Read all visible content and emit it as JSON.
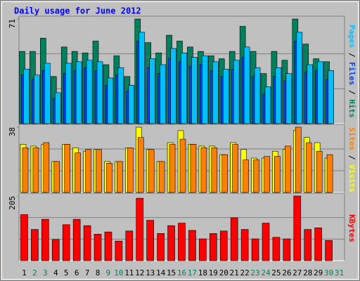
{
  "title": "Daily usage for June 2012",
  "legend_separator": " / ",
  "categories": [
    "1",
    "2",
    "3",
    "4",
    "5",
    "6",
    "7",
    "8",
    "9",
    "10",
    "11",
    "12",
    "13",
    "14",
    "15",
    "16",
    "17",
    "18",
    "19",
    "20",
    "21",
    "22",
    "23",
    "24",
    "25",
    "26",
    "27",
    "28",
    "29",
    "30",
    "31"
  ],
  "category_colors": [
    "#000000",
    "#00805c",
    "#00805c",
    "#000000",
    "#000000",
    "#000000",
    "#000000",
    "#000000",
    "#00805c",
    "#00805c",
    "#000000",
    "#000000",
    "#000000",
    "#000000",
    "#000000",
    "#00805c",
    "#00805c",
    "#000000",
    "#000000",
    "#000000",
    "#000000",
    "#000000",
    "#00805c",
    "#00805c",
    "#000000",
    "#000000",
    "#000000",
    "#000000",
    "#000000",
    "#00805c",
    "#00805c"
  ],
  "chart_data": [
    {
      "type": "bar",
      "ylim": [
        0,
        71
      ],
      "yticks": [
        71
      ],
      "grid_divisions": 3,
      "series": [
        {
          "name": "Hits",
          "color": "#00805c",
          "values": [
            49,
            49,
            58,
            32,
            52,
            49,
            48,
            56,
            40,
            46,
            32,
            71,
            55,
            48,
            60,
            56,
            52,
            49,
            46,
            44,
            49,
            66,
            49,
            34,
            49,
            43,
            71,
            54,
            44,
            42,
            null
          ]
        },
        {
          "name": "Files",
          "color": "#0040ff",
          "values": [
            33,
            30,
            36,
            17,
            34,
            36,
            38,
            36,
            26,
            33,
            22,
            56,
            38,
            34,
            44,
            42,
            39,
            40,
            36,
            32,
            37,
            45,
            32,
            20,
            32,
            29,
            56,
            35,
            36,
            30,
            null
          ]
        },
        {
          "name": "Pages",
          "color": "#00c0ff",
          "values": [
            37,
            33,
            41,
            21,
            41,
            42,
            43,
            42,
            31,
            38,
            26,
            62,
            44,
            40,
            51,
            48,
            45,
            46,
            42,
            37,
            43,
            52,
            38,
            25,
            38,
            34,
            62,
            40,
            42,
            36,
            null
          ]
        }
      ],
      "legend_order": [
        2,
        1,
        0
      ]
    },
    {
      "type": "bar",
      "ylim": [
        0,
        38
      ],
      "yticks": [
        38
      ],
      "grid_divisions": 3,
      "series": [
        {
          "name": "Visits",
          "color": "#ffff00",
          "values": [
            28,
            27,
            28,
            18,
            28,
            26,
            24,
            25,
            18,
            18,
            26,
            38,
            25,
            18,
            29,
            36,
            28,
            27,
            27,
            22,
            29,
            25,
            20,
            20,
            24,
            25,
            36,
            32,
            29,
            20,
            null
          ]
        },
        {
          "name": "Sites",
          "color": "#ff8000",
          "values": [
            26,
            26,
            29,
            18,
            28,
            23,
            25,
            25,
            17,
            18,
            26,
            32,
            25,
            18,
            28,
            31,
            28,
            26,
            26,
            22,
            28,
            19,
            19,
            21,
            21,
            27,
            38,
            29,
            24,
            22,
            null
          ]
        }
      ],
      "legend_order": [
        1,
        0
      ]
    },
    {
      "type": "bar",
      "ylim": [
        0,
        205
      ],
      "yticks": [
        205
      ],
      "grid_divisions": 3,
      "series": [
        {
          "name": "KBytes",
          "color": "#ff0000",
          "values": [
            146,
            99,
            131,
            67,
            114,
            131,
            111,
            84,
            91,
            62,
            94,
            198,
            128,
            86,
            111,
            119,
            96,
            69,
            86,
            94,
            136,
            99,
            69,
            119,
            74,
            69,
            205,
            99,
            104,
            64,
            null
          ]
        }
      ],
      "legend_order": [
        0
      ]
    }
  ]
}
